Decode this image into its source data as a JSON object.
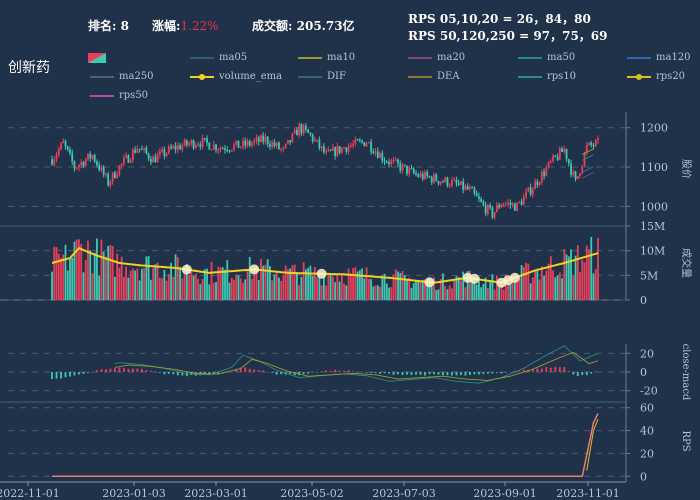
{
  "header": {
    "rank_label": "排名:",
    "rank_value": "8",
    "change_label": "涨幅:",
    "change_value": "1.22%",
    "turnover_label": "成交额:",
    "turnover_value": "205.73亿",
    "rps_line1": "RPS 05,10,20 = 26，84，80",
    "rps_line2": "RPS 50,120,250 = 97，75，69"
  },
  "title": "创新药",
  "colors": {
    "background": "#20314a",
    "up": "#e8405a",
    "down": "#3fc9b0",
    "volume_ema": "#f5d020",
    "rps_line": "#f07878"
  },
  "legend": [
    {
      "name": "ma05",
      "color": "#2f5a78"
    },
    {
      "name": "ma10",
      "color": "#9a9a34"
    },
    {
      "name": "ma20",
      "color": "#7a4a7a"
    },
    {
      "name": "ma50",
      "color": "#2a8a78"
    },
    {
      "name": "ma120",
      "color": "#2f6aa8"
    },
    {
      "name": "ma250",
      "color": "#5a5a7a"
    },
    {
      "name": "volume_ema",
      "color": "#f5d020"
    },
    {
      "name": "DIF",
      "color": "#2a6a70"
    },
    {
      "name": "DEA",
      "color": "#8a7a34"
    },
    {
      "name": "rps10",
      "color": "#2a8a90"
    },
    {
      "name": "rps20",
      "color": "#d8c020"
    },
    {
      "name": "rps50",
      "color": "#b04aa0"
    }
  ],
  "chart_data": [
    {
      "type": "candlestick",
      "ylabel": "股价",
      "ylim": [
        950,
        1240
      ],
      "yticks": [
        1000,
        1100,
        1200
      ],
      "keypoints": [
        [
          0,
          1120
        ],
        [
          5,
          1160
        ],
        [
          10,
          1100
        ],
        [
          18,
          1130
        ],
        [
          25,
          1060
        ],
        [
          30,
          1100
        ],
        [
          38,
          1150
        ],
        [
          45,
          1120
        ],
        [
          55,
          1150
        ],
        [
          65,
          1165
        ],
        [
          75,
          1150
        ],
        [
          85,
          1155
        ],
        [
          95,
          1170
        ],
        [
          103,
          1140
        ],
        [
          110,
          1200
        ],
        [
          115,
          1180
        ],
        [
          122,
          1130
        ],
        [
          130,
          1150
        ],
        [
          140,
          1165
        ],
        [
          148,
          1120
        ],
        [
          155,
          1100
        ],
        [
          162,
          1080
        ],
        [
          170,
          1070
        ],
        [
          178,
          1060
        ],
        [
          186,
          1040
        ],
        [
          192,
          1000
        ],
        [
          196,
          980
        ],
        [
          200,
          1010
        ],
        [
          207,
          1000
        ],
        [
          214,
          1050
        ],
        [
          222,
          1110
        ],
        [
          228,
          1145
        ],
        [
          233,
          1060
        ],
        [
          238,
          1150
        ],
        [
          243,
          1160
        ]
      ]
    },
    {
      "type": "bar",
      "ylabel": "成交量",
      "ylim": [
        0,
        15
      ],
      "yticks": [
        0,
        5,
        10,
        15
      ],
      "ytick_labels": [
        "0",
        "5M",
        "10M",
        "15M"
      ],
      "series": [
        {
          "name": "volume_ema"
        }
      ],
      "ema_keypoints": [
        [
          0,
          7.5
        ],
        [
          8,
          8.5
        ],
        [
          12,
          10.5
        ],
        [
          20,
          9
        ],
        [
          30,
          7.5
        ],
        [
          40,
          7
        ],
        [
          55,
          6.5
        ],
        [
          70,
          5.5
        ],
        [
          90,
          6.2
        ],
        [
          105,
          5.5
        ],
        [
          130,
          5.2
        ],
        [
          150,
          4.5
        ],
        [
          170,
          3.5
        ],
        [
          185,
          4.5
        ],
        [
          200,
          3.5
        ],
        [
          215,
          6
        ],
        [
          228,
          7.5
        ],
        [
          243,
          9.5
        ]
      ]
    },
    {
      "type": "bar",
      "ylabel": "close-macd",
      "ylim": [
        -30,
        30
      ],
      "yticks": [
        -20,
        0,
        20
      ]
    },
    {
      "type": "line",
      "ylabel": "RPS",
      "ylim": [
        -5,
        65
      ],
      "yticks": [
        0,
        20,
        40,
        60
      ],
      "x": [
        "2022-11-01",
        "2023-01-03",
        "2023-03-01",
        "2023-05-02",
        "2023-07-03",
        "2023-09-01",
        "2023-11-01"
      ],
      "series": [
        {
          "values_keypoints": [
            [
              0,
              0
            ],
            [
              236,
              0
            ],
            [
              241,
              47
            ],
            [
              243,
              55
            ]
          ]
        }
      ]
    }
  ]
}
